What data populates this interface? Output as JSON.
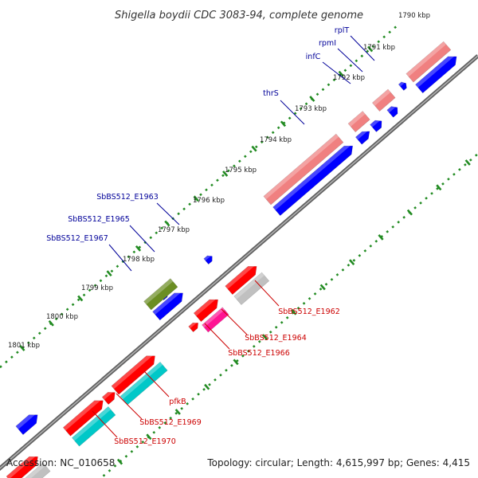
{
  "title": "Shigella boydii CDC 3083-94, complete genome",
  "footer": {
    "accession": "Accession: NC_010658",
    "summary": "Topology: circular; Length: 4,615,997 bp; Genes: 4,415"
  },
  "colors": {
    "backbone": "#808080",
    "tick": "#228B22",
    "forward_label": "#000099",
    "reverse_label": "#CC0000"
  },
  "ticks": [
    "1790 kbp",
    "1791 kbp",
    "1792 kbp",
    "1793 kbp",
    "1794 kbp",
    "1795 kbp",
    "1796 kbp",
    "1797 kbp",
    "1798 kbp",
    "1799 kbp",
    "1800 kbp",
    "1801 kbp"
  ],
  "forward_genes": [
    {
      "label": "rplT",
      "color": "#0000ff",
      "gene": "rplT"
    },
    {
      "label": "rpmI",
      "color": "#0000ff",
      "gene": "rpmI"
    },
    {
      "label": "infC",
      "color": "#0000ff",
      "gene": "infC"
    },
    {
      "label": "thrS",
      "color": "#0000ff",
      "gene": "thrS"
    },
    {
      "label": "SbBS512_E1963",
      "color": "#0000ff",
      "gene": "SbBS512_E1963"
    },
    {
      "label": "SbBS512_E1965",
      "color": "#0000ff",
      "gene": "SbBS512_E1965"
    },
    {
      "label": "SbBS512_E1967",
      "color": "#0000ff",
      "gene": "SbBS512_E1967"
    }
  ],
  "reverse_genes": [
    {
      "label": "SbBS512_E1962",
      "color": "#ff0000"
    },
    {
      "label": "SbBS512_E1964",
      "color": "#ff0000"
    },
    {
      "label": "SbBS512_E1966",
      "color": "#ff0000"
    },
    {
      "label": "pfkB",
      "color": "#ff0000"
    },
    {
      "label": "SbBS512_E1969",
      "color": "#ff0000"
    },
    {
      "label": "SbBS512_E1970",
      "color": "#ff0000"
    }
  ],
  "cds_colors": {
    "forward_cds": "#0000ff",
    "forward_cds_alt": "#6b8e23",
    "forward_feature": "#f08080",
    "reverse_cds": "#ff0000",
    "reverse_cds_alt": "#ff1493",
    "reverse_feature_a": "#c0c0c0",
    "reverse_feature_b": "#00c8c8"
  }
}
